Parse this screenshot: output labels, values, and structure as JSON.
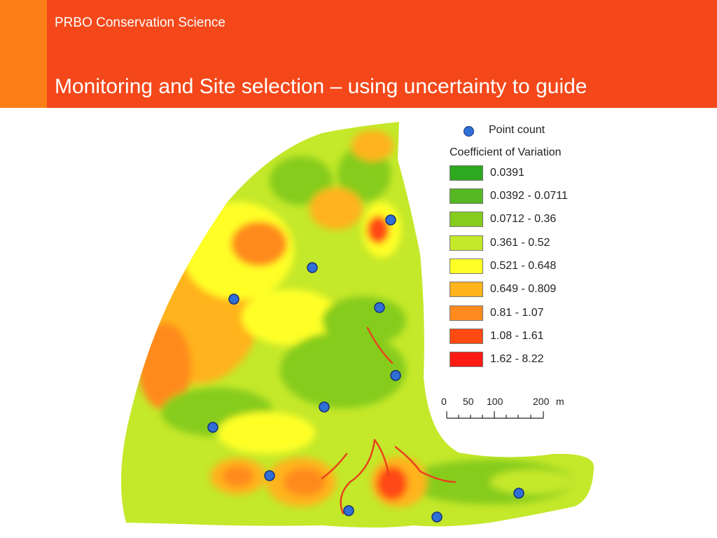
{
  "header": {
    "org": "PRBO Conservation Science",
    "title": "Monitoring and Site selection – using uncertainty to guide"
  },
  "colors": {
    "header_bg": "#f4481a",
    "header_strip": "#fb7e17",
    "point_marker": "#2f6fd6"
  },
  "legend": {
    "point_label": "Point count",
    "title": "Coefficient of Variation",
    "classes": [
      {
        "label": "0.0391",
        "color": "#2ea81e"
      },
      {
        "label": "0.0392 - 0.0711",
        "color": "#55b822"
      },
      {
        "label": "0.0712 - 0.36",
        "color": "#86cc1d"
      },
      {
        "label": "0.361 - 0.52",
        "color": "#c4e82a"
      },
      {
        "label": "0.521 - 0.648",
        "color": "#ffff26"
      },
      {
        "label": "0.649 - 0.809",
        "color": "#ffb31c"
      },
      {
        "label": "0.81 - 1.07",
        "color": "#ff8a1e"
      },
      {
        "label": "1.08 - 1.61",
        "color": "#ff4a12"
      },
      {
        "label": "1.62 - 8.22",
        "color": "#ff1a14"
      }
    ]
  },
  "scale_bar": {
    "ticks": [
      "0",
      "50",
      "100",
      "200"
    ],
    "unit": "m"
  }
}
